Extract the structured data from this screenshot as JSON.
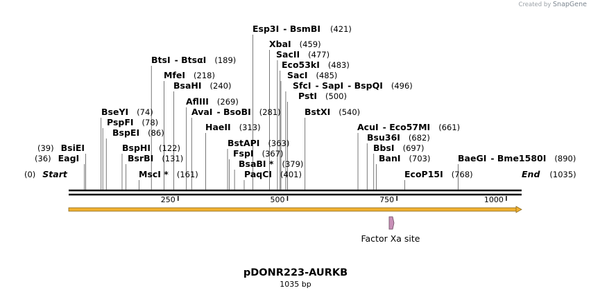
{
  "credit": {
    "prefix": "Created by",
    "brand": "SnapGene"
  },
  "plasmid": {
    "name": "pDONR223-AURKB",
    "length_label": "1035 bp",
    "length_bp": 1035
  },
  "axis": {
    "ticks": [
      250,
      500,
      750,
      1000
    ],
    "tick_labels": [
      "250",
      "500",
      "750",
      "1000"
    ]
  },
  "sites": [
    {
      "name": "Esp3I",
      "alt": "BsmBI",
      "pos": "(421)",
      "bp": 421
    },
    {
      "name": "XbaI",
      "alt": "",
      "pos": "(459)",
      "bp": 459
    },
    {
      "name": "SacII",
      "alt": "",
      "pos": "(477)",
      "bp": 477
    },
    {
      "name": "Eco53kI",
      "alt": "",
      "pos": "(483)",
      "bp": 483
    },
    {
      "name": "SacI",
      "alt": "",
      "pos": "(485)",
      "bp": 485
    },
    {
      "name": "SfcI",
      "alt": "SapI",
      "alt2": "BspQI",
      "pos": "(496)",
      "bp": 496
    },
    {
      "name": "PstI",
      "alt": "",
      "pos": "(500)",
      "bp": 500
    },
    {
      "name": "BtsI",
      "alt": "BtsαI",
      "pos": "(189)",
      "bp": 189
    },
    {
      "name": "MfeI",
      "alt": "",
      "pos": "(218)",
      "bp": 218
    },
    {
      "name": "BsaHI",
      "alt": "",
      "pos": "(240)",
      "bp": 240
    },
    {
      "name": "AflIII",
      "alt": "",
      "pos": "(269)",
      "bp": 269
    },
    {
      "name": "AvaI",
      "alt": "BsoBI",
      "pos": "(281)",
      "bp": 281
    },
    {
      "name": "BseYI",
      "alt": "",
      "pos": "(74)",
      "bp": 74
    },
    {
      "name": "PspFI",
      "alt": "",
      "pos": "(78)",
      "bp": 78
    },
    {
      "name": "BspEI",
      "alt": "",
      "pos": "(86)",
      "bp": 86
    },
    {
      "name": "HaeII",
      "alt": "",
      "pos": "(313)",
      "bp": 313
    },
    {
      "name": "BstXI",
      "alt": "",
      "pos": "(540)",
      "bp": 540
    },
    {
      "name": "AcuI",
      "alt": "Eco57MI",
      "pos": "(661)",
      "bp": 661
    },
    {
      "name": "Bsu36I",
      "alt": "",
      "pos": "(682)",
      "bp": 682
    },
    {
      "name": "BbsI",
      "alt": "",
      "pos": "(697)",
      "bp": 697
    },
    {
      "name": "BanI",
      "alt": "",
      "pos": "(703)",
      "bp": 703
    },
    {
      "name": "BstAPI",
      "alt": "",
      "pos": "(363)",
      "bp": 363
    },
    {
      "name": "FspI",
      "alt": "",
      "pos": "(367)",
      "bp": 367
    },
    {
      "name": "BsaBI *",
      "alt": "",
      "pos": "(379)",
      "bp": 379
    },
    {
      "name": "PaqCI",
      "alt": "",
      "pos": "(401)",
      "bp": 401
    },
    {
      "name": "BsiEI",
      "alt": "",
      "pos": "(39)",
      "bp": 39
    },
    {
      "name": "EagI",
      "alt": "",
      "pos": "(36)",
      "bp": 36
    },
    {
      "name": "BspHI",
      "alt": "",
      "pos": "(122)",
      "bp": 122
    },
    {
      "name": "BsrBI",
      "alt": "",
      "pos": "(131)",
      "bp": 131
    },
    {
      "name": "MscI *",
      "alt": "",
      "pos": "(161)",
      "bp": 161
    },
    {
      "name": "EcoP15I",
      "alt": "",
      "pos": "(768)",
      "bp": 768
    },
    {
      "name": "BaeGI",
      "alt": "Bme1580I",
      "pos": "(890)",
      "bp": 890
    }
  ],
  "ends": {
    "start_label": "Start",
    "start_pos": "(0)",
    "end_label": "End",
    "end_pos": "(1035)"
  },
  "features": [
    {
      "label": "Factor Xa site",
      "color": "#c890b8"
    }
  ],
  "colors": {
    "backbone": "#000000",
    "orf_arrow": "#f0b030",
    "orf_outline": "#8a6a20"
  }
}
